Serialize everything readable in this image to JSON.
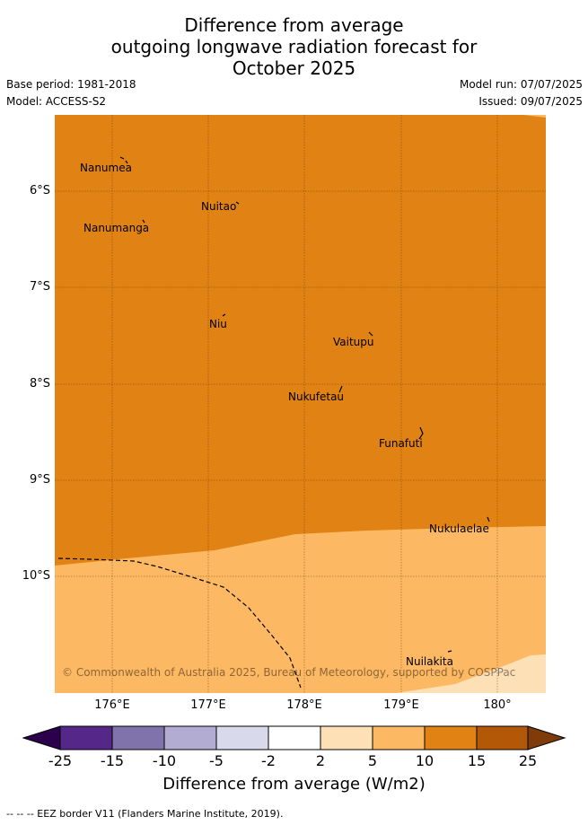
{
  "header": {
    "title_lines": [
      "Difference from average",
      "outgoing longwave radiation forecast for",
      "October 2025"
    ],
    "base_period": "Base period: 1981-2018",
    "model": "Model: ACCESS-S2",
    "model_run": "Model run: 07/07/2025",
    "issued": "Issued: 09/07/2025"
  },
  "map": {
    "lat_labels": [
      "6°S",
      "7°S",
      "8°S",
      "9°S",
      "10°S"
    ],
    "lon_labels": [
      "176°E",
      "177°E",
      "178°E",
      "179°E",
      "180°"
    ],
    "islands": [
      {
        "name": "Nanumea"
      },
      {
        "name": "Nuitao"
      },
      {
        "name": "Nanumanga"
      },
      {
        "name": "Niu"
      },
      {
        "name": "Vaitupu"
      },
      {
        "name": "Nukufetau"
      },
      {
        "name": "Funafuti"
      },
      {
        "name": "Nukulaelae"
      },
      {
        "name": "Nuilakita"
      }
    ],
    "copyright": "© Commonwealth of Australia 2025, Bureau of Meteorology, supported by COSPPac",
    "field_colors": {
      "class_10_15": "#e08214",
      "class_5_10": "#fdb863",
      "class_2_5": "#fee0b6"
    }
  },
  "colorbar": {
    "tick_labels": [
      "-25",
      "-15",
      "-10",
      "-5",
      "-2",
      "2",
      "5",
      "10",
      "15",
      "25"
    ],
    "colors": [
      "#2d004b",
      "#542788",
      "#8073ac",
      "#b2abd2",
      "#d8daeb",
      "#ffffff",
      "#fee0b6",
      "#fdb863",
      "#e08214",
      "#b35806",
      "#7f3b08"
    ],
    "label": "Difference from average (W/m2)"
  },
  "legend": {
    "eez": "-- -- -- EEZ border V11 (Flanders Marine Institute, 2019)."
  }
}
